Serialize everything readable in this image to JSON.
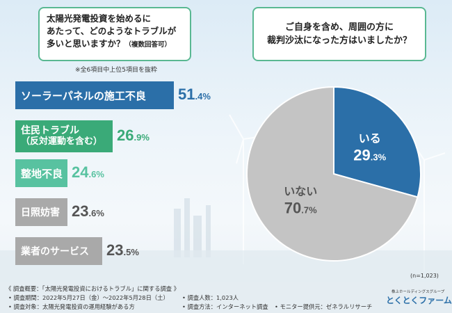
{
  "left_question": {
    "text_line1": "太陽光発電投資を始めるに",
    "text_line2": "あたって、どのようなトラブルが",
    "text_line3": "多いと思いますか？",
    "text_small": "（複数回答可）"
  },
  "left_note": "※全6項目中上位5項目を抜粋",
  "right_question": {
    "text_line1": "ご自身を含め、周囲の方に",
    "text_line2": "裁判沙汰になった方はいましたか？"
  },
  "colors": {
    "blue": "#2b6fa8",
    "green": "#3aaa78",
    "light_green": "#58c2a0",
    "gray": "#a9a9a9",
    "pie_gray": "#c4c4c4"
  },
  "chart_data": [
    {
      "type": "bar",
      "orientation": "horizontal",
      "categories": [
        "ソーラーパネルの施工不良",
        "住民トラブル（反対運動を含む）",
        "整地不良",
        "日照妨害",
        "業者のサービス"
      ],
      "category_lines": [
        [
          "ソーラーパネルの施工不良"
        ],
        [
          "住民トラブル",
          "（反対運動を含む）"
        ],
        [
          "整地不良"
        ],
        [
          "日照妨害"
        ],
        [
          "業者のサービス"
        ]
      ],
      "values": [
        51.4,
        26.9,
        24.6,
        23.6,
        23.5
      ],
      "value_labels": [
        {
          "int": "51",
          "dec": ".4%"
        },
        {
          "int": "26",
          "dec": ".9%"
        },
        {
          "int": "24",
          "dec": ".6%"
        },
        {
          "int": "23",
          "dec": ".6%"
        },
        {
          "int": "23",
          "dec": ".5%"
        }
      ],
      "unit": "%"
    },
    {
      "type": "pie",
      "slices": [
        {
          "label": "いる",
          "value": 29.3,
          "value_label": {
            "int": "29",
            "dec": ".3%"
          },
          "color": "#2b6fa8"
        },
        {
          "label": "いない",
          "value": 70.7,
          "value_label": {
            "int": "70",
            "dec": ".7%"
          },
          "color": "#c4c4c4"
        }
      ],
      "sample_size": "(n=1,023)"
    }
  ],
  "footer": {
    "line1": "《 調査概要：「太陽光発電投資におけるトラブル」に関する調査 》",
    "line2a": "• 調査期間：2022年5月27日（金）〜2022年5月28日（土）",
    "line2b": "• 調査人数：1,023人",
    "line3a": "• 調査対象：太陽光発電投資の運用経験がある方",
    "line3b": "• 調査方法：インターネット調査",
    "line3c": "• モニター提供元：ゼネラルリサーチ"
  },
  "logo": {
    "small": "株上ホールディングスグループ",
    "main": "とくとくファーム"
  }
}
